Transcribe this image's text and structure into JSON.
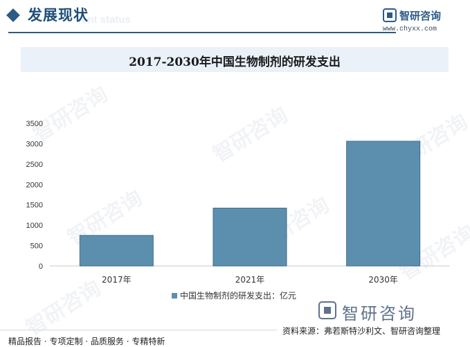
{
  "header": {
    "title": "发展现状",
    "subtitle_ghost": "ent status"
  },
  "brand": {
    "name": "智研咨询",
    "url": "www.chyxx.com"
  },
  "watermark_text": "智研咨询",
  "bottom_logo": "智研咨询",
  "source": "资料来源：弗若斯特沙利文、智研咨询整理",
  "footer": "精品报告 · 专项定制 · 品质服务 · 专精特新",
  "colors": {
    "bar": "#5b8fad",
    "bar_edge": "#3f6e8b",
    "header_accent": "#2c5b86",
    "title_band": "#eaf1f8"
  },
  "chart_data": {
    "type": "bar",
    "title": "2017-2030年中国生物制剂的研发支出",
    "categories": [
      "2017年",
      "2021年",
      "2030年"
    ],
    "series": [
      {
        "name": "中国生物制剂的研发支出：亿元",
        "values": [
          750,
          1420,
          3060
        ]
      }
    ],
    "ylim": [
      0,
      3500
    ],
    "yticks": [
      0,
      500,
      1000,
      1500,
      2000,
      2500,
      3000,
      3500
    ],
    "grid": false,
    "legend_position": "bottom"
  }
}
